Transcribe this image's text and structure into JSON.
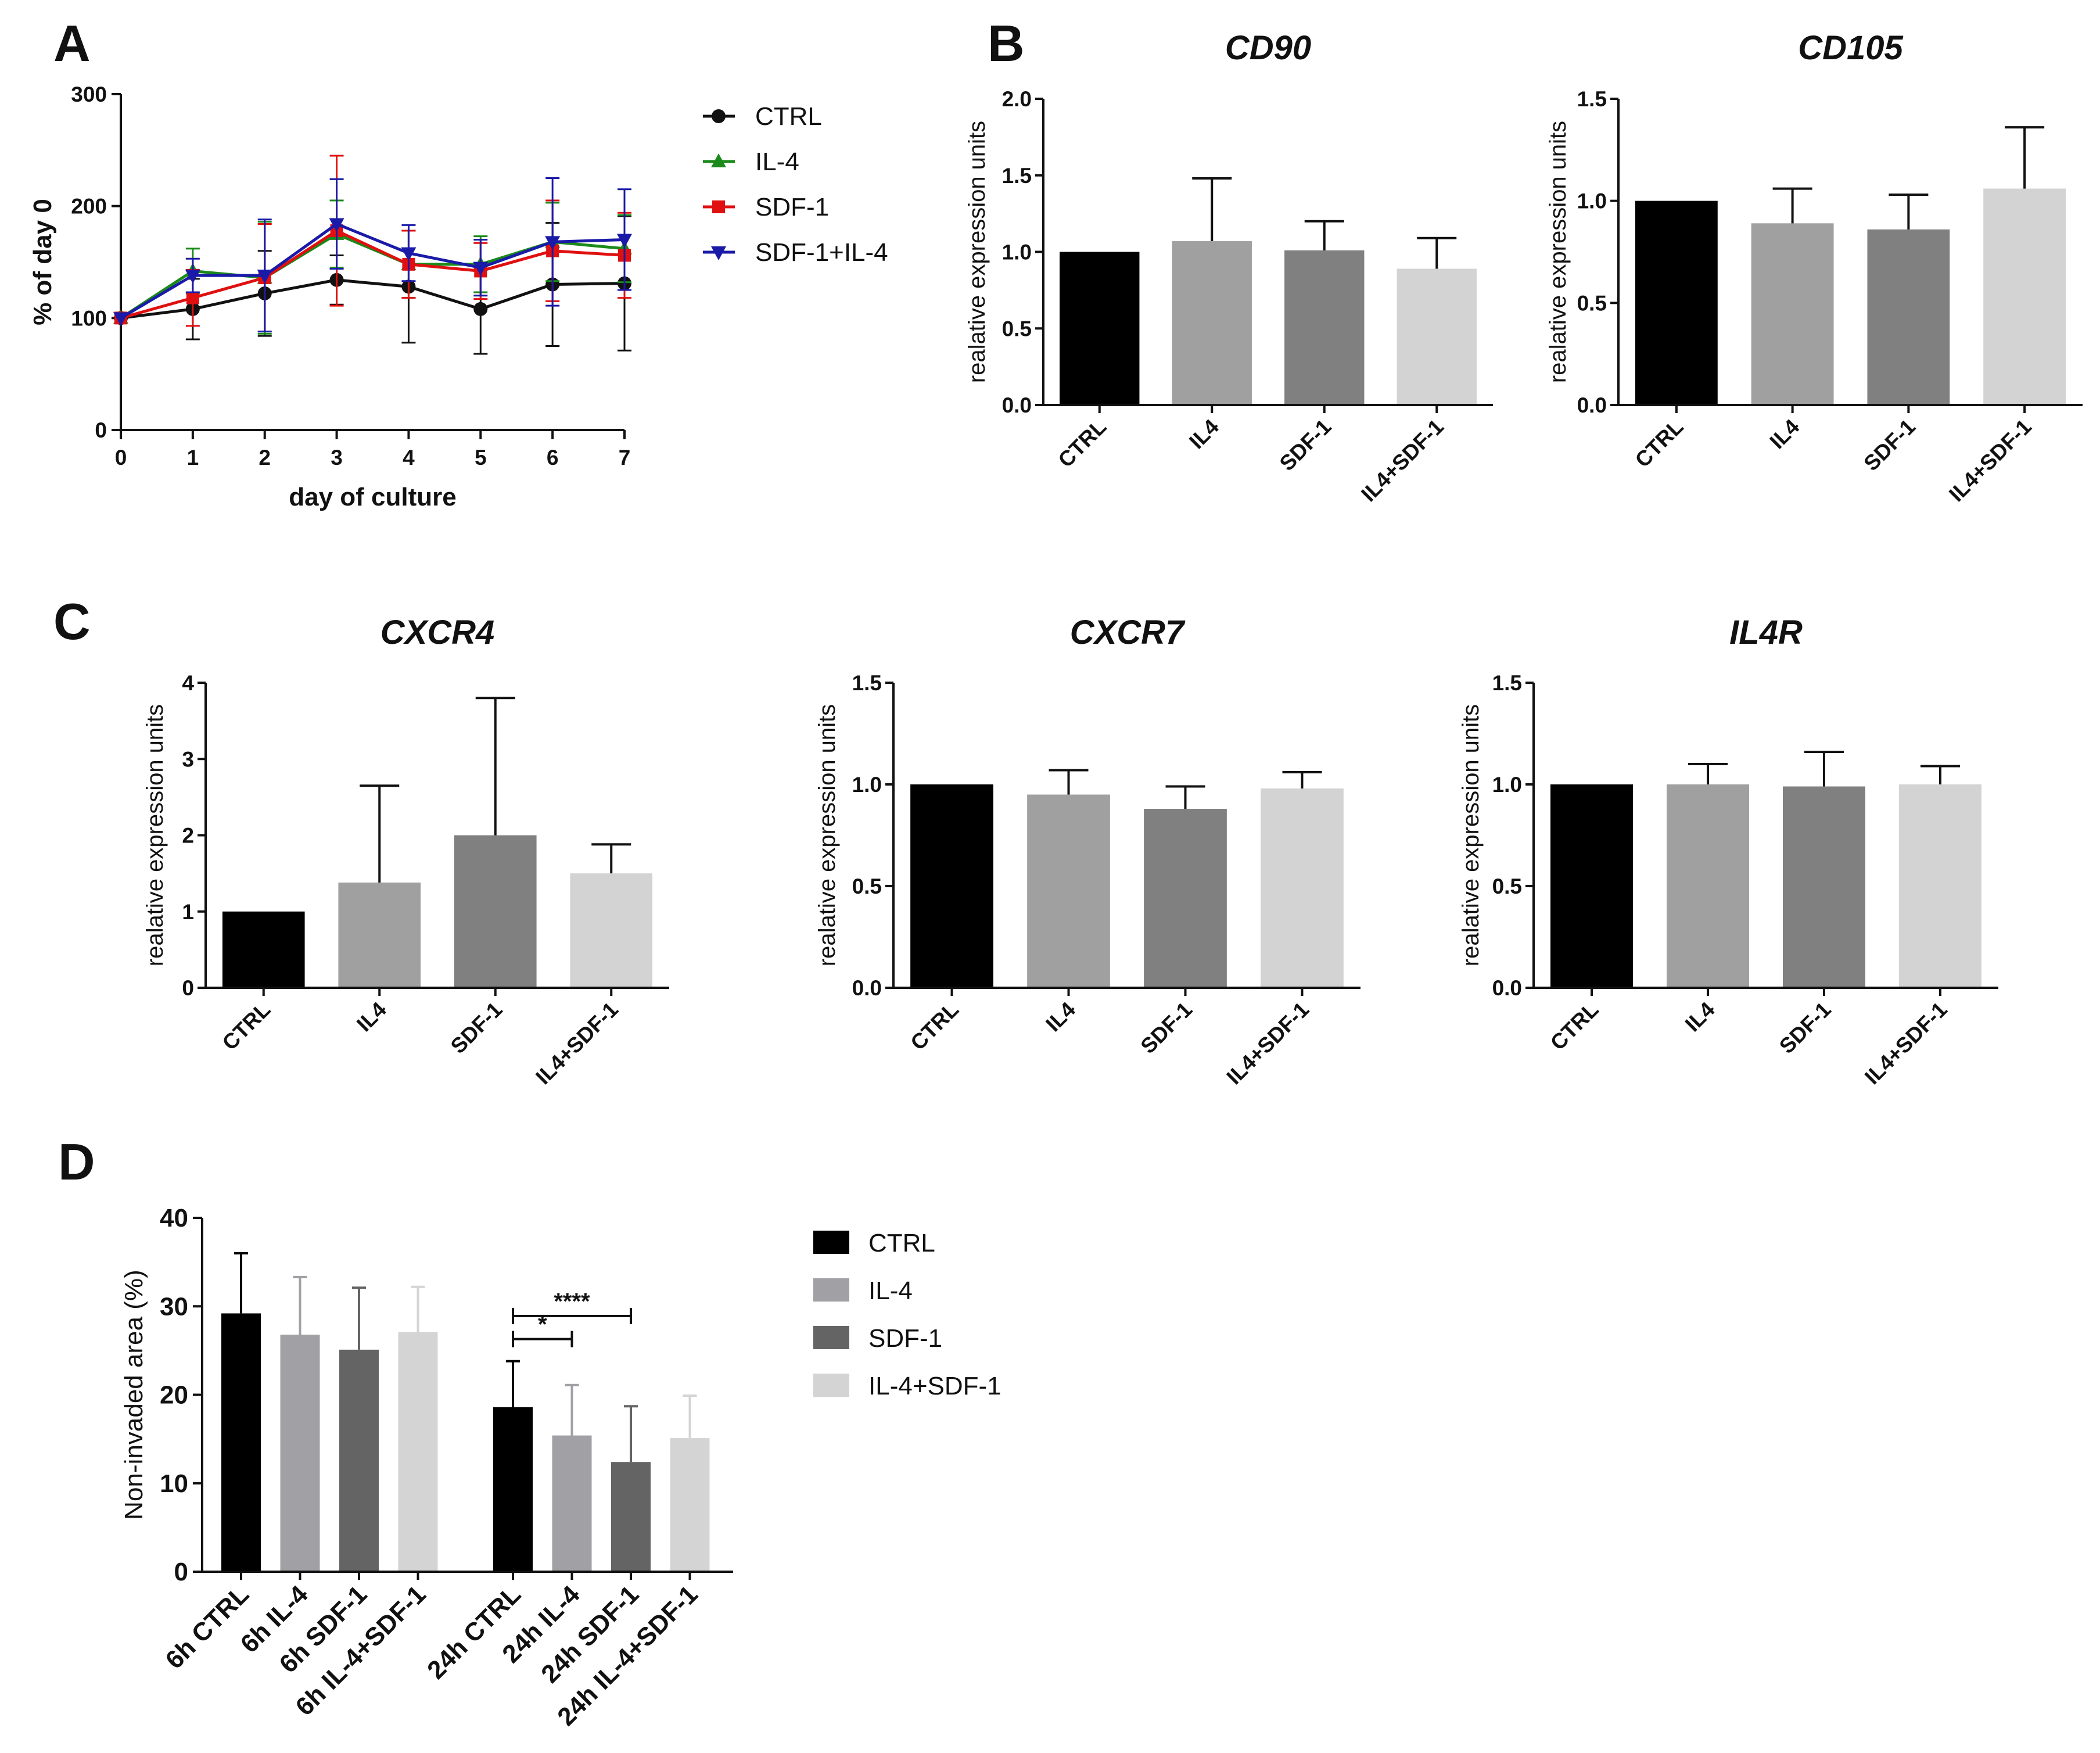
{
  "panels": {
    "A": "A",
    "B": "B",
    "C": "C",
    "D": "D"
  },
  "chart_data": [
    {
      "id": "A",
      "type": "line",
      "title": "",
      "xlabel": "day of culture",
      "ylabel": "% of day 0",
      "x": [
        0,
        1,
        2,
        3,
        4,
        5,
        6,
        7
      ],
      "xlim": [
        0,
        7
      ],
      "ylim": [
        0,
        300
      ],
      "yticks": [
        0,
        100,
        200,
        300
      ],
      "legend_position": "right",
      "series": [
        {
          "name": "CTRL",
          "color": "#111111",
          "marker": "circle",
          "values": [
            100,
            108,
            122,
            134,
            128,
            108,
            130,
            131
          ],
          "err": [
            0,
            27,
            38,
            22,
            50,
            40,
            55,
            60
          ]
        },
        {
          "name": "IL-4",
          "color": "#1a8a1a",
          "marker": "triangle-up",
          "values": [
            100,
            142,
            136,
            175,
            148,
            148,
            168,
            162
          ],
          "err": [
            0,
            20,
            50,
            30,
            30,
            25,
            35,
            30
          ]
        },
        {
          "name": "SDF-1",
          "color": "#e01010",
          "marker": "square",
          "values": [
            100,
            118,
            136,
            178,
            148,
            142,
            160,
            156
          ],
          "err": [
            0,
            25,
            48,
            67,
            30,
            25,
            45,
            38
          ]
        },
        {
          "name": "SDF-1+IL-4",
          "color": "#1a1aa8",
          "marker": "triangle-down",
          "values": [
            100,
            138,
            138,
            184,
            158,
            145,
            168,
            170
          ],
          "err": [
            0,
            15,
            50,
            40,
            25,
            25,
            57,
            45
          ]
        }
      ]
    },
    {
      "id": "B1",
      "type": "bar",
      "title": "CD90",
      "xlabel": "",
      "ylabel": "realative expression units",
      "categories": [
        "CTRL",
        "IL4",
        "SDF-1",
        "IL4+SDF-1"
      ],
      "values": [
        1.0,
        1.07,
        1.01,
        0.89
      ],
      "err": [
        0,
        0.41,
        0.19,
        0.2
      ],
      "colors": [
        "#000000",
        "#a0a0a0",
        "#808080",
        "#d3d3d3"
      ],
      "ylim": [
        0,
        2.0
      ],
      "yticks": [
        "0.0",
        "0.5",
        "1.0",
        "1.5",
        "2.0"
      ]
    },
    {
      "id": "B2",
      "type": "bar",
      "title": "CD105",
      "xlabel": "",
      "ylabel": "realative expression units",
      "categories": [
        "CTRL",
        "IL4",
        "SDF-1",
        "IL4+SDF-1"
      ],
      "values": [
        1.0,
        0.89,
        0.86,
        1.06
      ],
      "err": [
        0,
        0.17,
        0.17,
        0.3
      ],
      "colors": [
        "#000000",
        "#a0a0a0",
        "#808080",
        "#d3d3d3"
      ],
      "ylim": [
        0,
        1.5
      ],
      "yticks": [
        "0.0",
        "0.5",
        "1.0",
        "1.5"
      ]
    },
    {
      "id": "C1",
      "type": "bar",
      "title": "CXCR4",
      "xlabel": "",
      "ylabel": "realative expression units",
      "categories": [
        "CTRL",
        "IL4",
        "SDF-1",
        "IL4+SDF-1"
      ],
      "values": [
        1.0,
        1.38,
        2.0,
        1.5
      ],
      "err": [
        0,
        1.27,
        1.8,
        0.38
      ],
      "colors": [
        "#000000",
        "#a0a0a0",
        "#808080",
        "#d3d3d3"
      ],
      "ylim": [
        0,
        4
      ],
      "yticks": [
        "0",
        "1",
        "2",
        "3",
        "4"
      ]
    },
    {
      "id": "C2",
      "type": "bar",
      "title": "CXCR7",
      "xlabel": "",
      "ylabel": "realative expression units",
      "categories": [
        "CTRL",
        "IL4",
        "SDF-1",
        "IL4+SDF-1"
      ],
      "values": [
        1.0,
        0.95,
        0.88,
        0.98
      ],
      "err": [
        0,
        0.12,
        0.11,
        0.08
      ],
      "colors": [
        "#000000",
        "#a0a0a0",
        "#808080",
        "#d3d3d3"
      ],
      "ylim": [
        0,
        1.5
      ],
      "yticks": [
        "0.0",
        "0.5",
        "1.0",
        "1.5"
      ]
    },
    {
      "id": "C3",
      "type": "bar",
      "title": "IL4R",
      "xlabel": "",
      "ylabel": "realative expression units",
      "categories": [
        "CTRL",
        "IL4",
        "SDF-1",
        "IL4+SDF-1"
      ],
      "values": [
        1.0,
        1.0,
        0.99,
        1.0
      ],
      "err": [
        0,
        0.1,
        0.17,
        0.09
      ],
      "colors": [
        "#000000",
        "#a0a0a0",
        "#808080",
        "#d3d3d3"
      ],
      "ylim": [
        0,
        1.5
      ],
      "yticks": [
        "0.0",
        "0.5",
        "1.0",
        "1.5"
      ]
    },
    {
      "id": "D",
      "type": "bar",
      "title": "",
      "xlabel": "",
      "ylabel": "Non-invaded area (%)",
      "categories": [
        "6h CTRL",
        "6h IL-4",
        "6h SDF-1",
        "6h IL-4+SDF-1",
        "24h CTRL",
        "24h IL-4",
        "24h SDF-1",
        "24h IL-4+SDF-1"
      ],
      "values": [
        29.2,
        26.8,
        25.1,
        27.1,
        18.6,
        15.4,
        12.4,
        15.1
      ],
      "err": [
        6.8,
        6.5,
        7.0,
        5.1,
        5.2,
        5.7,
        6.3,
        4.8
      ],
      "colors": [
        "#000000",
        "#a0a0a5",
        "#646464",
        "#d4d4d4",
        "#000000",
        "#a0a0a5",
        "#646464",
        "#d4d4d4"
      ],
      "ylim": [
        0,
        40
      ],
      "yticks": [
        "0",
        "10",
        "20",
        "30",
        "40"
      ],
      "legend": [
        {
          "name": "CTRL",
          "color": "#000000"
        },
        {
          "name": "IL-4",
          "color": "#a0a0a5"
        },
        {
          "name": "SDF-1",
          "color": "#646464"
        },
        {
          "name": "IL-4+SDF-1",
          "color": "#d4d4d4"
        }
      ],
      "legend_position": "right",
      "annotations": [
        {
          "from": "24h CTRL",
          "to": "24h IL-4",
          "label": "*",
          "y": 26.3
        },
        {
          "from": "24h CTRL",
          "to": "24h SDF-1",
          "label": "****",
          "y": 28.9
        }
      ]
    }
  ]
}
